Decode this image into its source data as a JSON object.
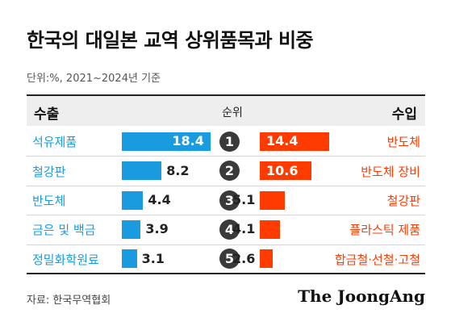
{
  "title": "한국의 대일본 교역 상위품목과 비중",
  "unit_note": "단위:%, 2021~2024년 기준",
  "header": {
    "export_label": "수출",
    "rank_label": "순위",
    "import_label": "수입"
  },
  "source": "자료: 한국무역협회",
  "logo": "The JoongAng",
  "colors": {
    "export": "#1a9be0",
    "import": "#ff3b00",
    "rank_circle": "#3a3a3a",
    "header_band": "#eeeeee"
  },
  "chart_data": {
    "type": "bar",
    "ranks": [
      "1",
      "2",
      "3",
      "4",
      "5"
    ],
    "series": [
      {
        "name": "수출",
        "categories": [
          "석유제품",
          "철강판",
          "반도체",
          "금은 및 백금",
          "정밀화학원료"
        ],
        "values": [
          18.4,
          8.2,
          4.4,
          3.9,
          3.1
        ]
      },
      {
        "name": "수입",
        "categories": [
          "반도체",
          "반도체 장비",
          "철강판",
          "플라스틱 제품",
          "합금철·선철·고철"
        ],
        "values": [
          14.4,
          10.6,
          5.1,
          4.1,
          2.6
        ]
      }
    ]
  }
}
